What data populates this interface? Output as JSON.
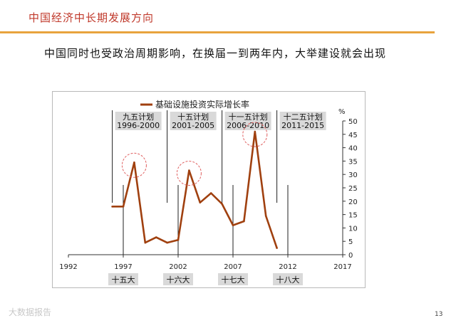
{
  "slide": {
    "title": "中国经济中长期发展方向",
    "headline": "中国同时也受政治周期影响，在换届一到两年内，大举建设就会出现",
    "page_number": "13",
    "watermark": "大数据报告"
  },
  "colors": {
    "title": "#c0392b",
    "accent_rule": "#e8a33d",
    "series": "#a0400f",
    "highlight_circle": "#e06060",
    "label_box": "#d9d9d9"
  },
  "chart_data": {
    "type": "line",
    "legend": {
      "position": "top-left",
      "entries": [
        "基础设施投资实际增长率"
      ]
    },
    "series": [
      {
        "name": "基础设施投资实际增长率",
        "x": [
          1996,
          1997,
          1998,
          1999,
          2000,
          2001,
          2002,
          2003,
          2004,
          2005,
          2006,
          2007,
          2008,
          2009,
          2010,
          2011
        ],
        "values": [
          18,
          18,
          34.5,
          4.5,
          6.5,
          4.5,
          5.5,
          31.5,
          19.5,
          23,
          19,
          11,
          12.5,
          46,
          14.5,
          2.5
        ]
      }
    ],
    "xlim": [
      1992,
      2017
    ],
    "x_ticks": [
      "1992",
      "1997",
      "2002",
      "2007",
      "2012",
      "2017"
    ],
    "ylim": [
      0,
      50
    ],
    "y_ticks": [
      "0",
      "5",
      "10",
      "15",
      "20",
      "25",
      "30",
      "35",
      "40",
      "45",
      "50"
    ],
    "y_unit": "%",
    "y_axis_side": "right",
    "grid": false,
    "plans": [
      {
        "name": "九五计划",
        "years": "1996-2000",
        "start": 1996
      },
      {
        "name": "十五计划",
        "years": "2001-2005",
        "start": 2001
      },
      {
        "name": "十一五计划",
        "years": "2006-2010",
        "start": 2006
      },
      {
        "name": "十二五计划",
        "years": "2011-2015",
        "start": 2011
      }
    ],
    "congresses": [
      {
        "label": "十五大",
        "year": 1997
      },
      {
        "label": "十六大",
        "year": 2002
      },
      {
        "label": "十七大",
        "year": 2007
      },
      {
        "label": "十八大",
        "year": 2012
      }
    ],
    "highlights": [
      {
        "x": 1998,
        "y": 34.5
      },
      {
        "x": 2003,
        "y": 31.5
      },
      {
        "x": 2009,
        "y": 46
      }
    ]
  }
}
